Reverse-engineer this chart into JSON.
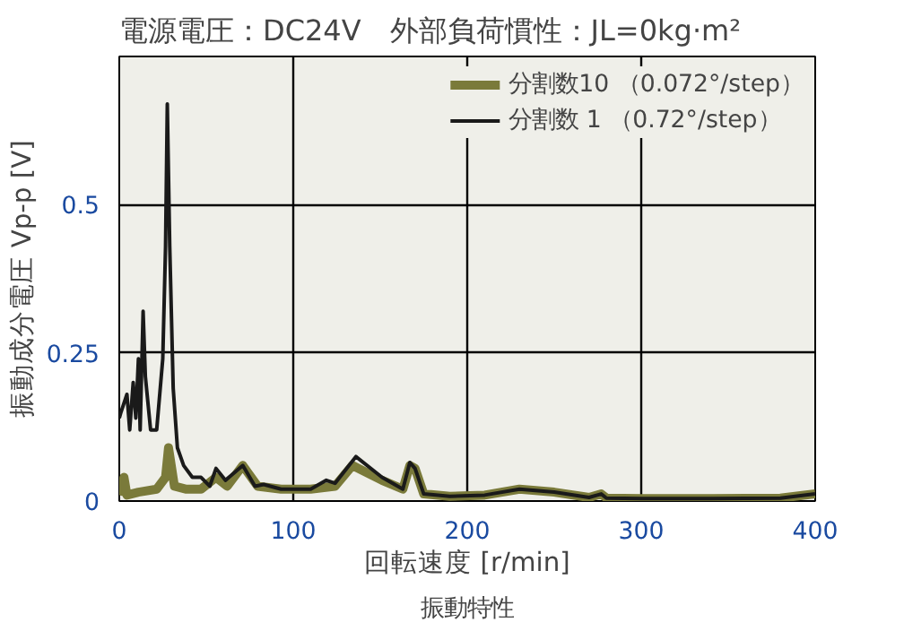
{
  "chart_data": {
    "type": "line",
    "title": "電源電圧：DC24V　外部負荷慣性：JL=0kg·m²",
    "xlabel": "回転速度 [r/min]",
    "ylabel": "振動成分電圧 Vp-p [V]",
    "annotations": [
      "振動特性"
    ],
    "xlim": [
      0,
      400
    ],
    "ylim": [
      0,
      0.75
    ],
    "xticks": [
      0,
      100,
      200,
      300,
      400
    ],
    "yticks": [
      0,
      0.25,
      0.5
    ],
    "grid": true,
    "legend": "top right",
    "line_style": "solid",
    "series": [
      {
        "name": "分割数10 （0.072°/step）",
        "color": "#7a7a3a",
        "x": [
          0,
          2.7,
          4.4,
          11,
          21.5,
          26.6,
          28.3,
          31.7,
          38.6,
          47,
          55.6,
          62,
          71,
          79.5,
          93,
          110,
          124,
          134,
          151,
          163,
          167,
          170,
          175,
          190,
          210,
          230,
          250,
          270,
          277,
          280,
          300,
          340,
          380,
          400
        ],
        "values": [
          0.01,
          0.04,
          0.01,
          0.015,
          0.02,
          0.04,
          0.09,
          0.025,
          0.02,
          0.02,
          0.04,
          0.025,
          0.06,
          0.025,
          0.02,
          0.02,
          0.025,
          0.06,
          0.035,
          0.02,
          0.06,
          0.055,
          0.012,
          0.008,
          0.01,
          0.02,
          0.015,
          0.006,
          0.012,
          0.005,
          0.004,
          0.004,
          0.005,
          0.012
        ]
      },
      {
        "name": "分割数 1 （0.72°/step）",
        "color": "#1a1a1a",
        "x": [
          0,
          1,
          4.4,
          6,
          8,
          9.5,
          11,
          12,
          13.7,
          15,
          18,
          21.5,
          25,
          26.6,
          27.6,
          29,
          31,
          33.4,
          37,
          42,
          47,
          52,
          55.6,
          61,
          71,
          78,
          83,
          93,
          110,
          119,
          124,
          136,
          151,
          163,
          167,
          170,
          175,
          190,
          210,
          230,
          250,
          270,
          277,
          280,
          300,
          340,
          380,
          400
        ],
        "values": [
          0.14,
          0.15,
          0.18,
          0.12,
          0.2,
          0.14,
          0.24,
          0.12,
          0.32,
          0.21,
          0.12,
          0.12,
          0.24,
          0.43,
          0.67,
          0.43,
          0.19,
          0.09,
          0.06,
          0.04,
          0.04,
          0.025,
          0.055,
          0.035,
          0.06,
          0.025,
          0.028,
          0.02,
          0.02,
          0.035,
          0.03,
          0.075,
          0.04,
          0.02,
          0.065,
          0.055,
          0.012,
          0.008,
          0.01,
          0.02,
          0.015,
          0.006,
          0.012,
          0.005,
          0.004,
          0.004,
          0.005,
          0.012
        ]
      }
    ]
  }
}
